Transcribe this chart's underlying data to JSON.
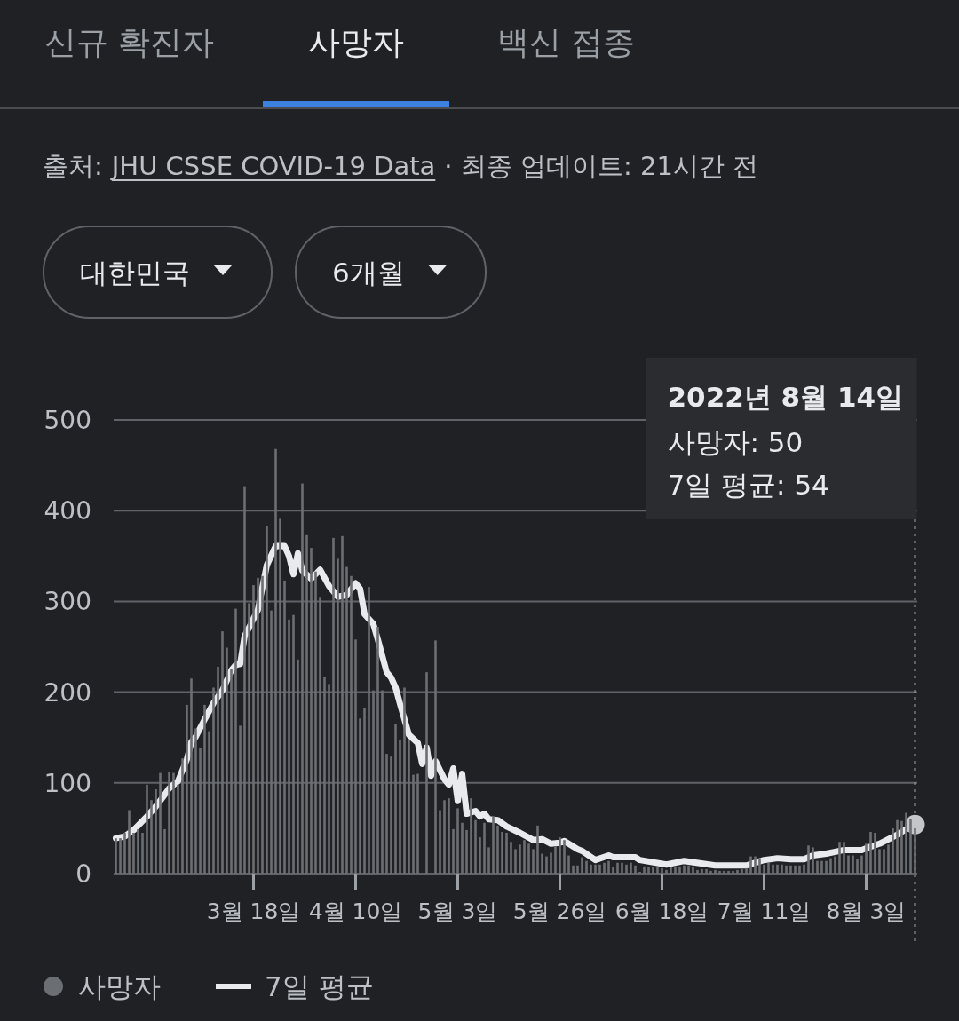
{
  "chart_data": {
    "type": "bar",
    "title": "사망자",
    "annotations": [
      "신규 확진자",
      "백신 접종",
      "출처:",
      "JHU CSSE COVID-19 Data",
      "· 최종 업데이트: 21시간 전",
      "대한민국",
      "6개월",
      "2022년 8월 14일",
      "사망자: 50",
      "7일 평균: 54"
    ],
    "x": [
      "2022-02-15",
      "2022-02-16",
      "2022-02-17",
      "2022-02-18",
      "2022-02-19",
      "2022-02-20",
      "2022-02-21",
      "2022-02-22",
      "2022-02-23",
      "2022-02-24",
      "2022-02-25",
      "2022-02-26",
      "2022-02-27",
      "2022-02-28",
      "2022-03-01",
      "2022-03-02",
      "2022-03-03",
      "2022-03-04",
      "2022-03-05",
      "2022-03-06",
      "2022-03-07",
      "2022-03-08",
      "2022-03-09",
      "2022-03-10",
      "2022-03-11",
      "2022-03-12",
      "2022-03-13",
      "2022-03-14",
      "2022-03-15",
      "2022-03-16",
      "2022-03-17",
      "2022-03-18",
      "2022-03-19",
      "2022-03-20",
      "2022-03-21",
      "2022-03-22",
      "2022-03-23",
      "2022-03-24",
      "2022-03-25",
      "2022-03-26",
      "2022-03-27",
      "2022-03-28",
      "2022-03-29",
      "2022-03-30",
      "2022-03-31",
      "2022-04-01",
      "2022-04-02",
      "2022-04-03",
      "2022-04-04",
      "2022-04-05",
      "2022-04-06",
      "2022-04-07",
      "2022-04-08",
      "2022-04-09",
      "2022-04-10",
      "2022-04-11",
      "2022-04-12",
      "2022-04-13",
      "2022-04-14",
      "2022-04-15",
      "2022-04-16",
      "2022-04-17",
      "2022-04-18",
      "2022-04-19",
      "2022-04-20",
      "2022-04-21",
      "2022-04-22",
      "2022-04-23",
      "2022-04-24",
      "2022-04-25",
      "2022-04-26",
      "2022-04-27",
      "2022-04-28",
      "2022-04-29",
      "2022-04-30",
      "2022-05-01",
      "2022-05-02",
      "2022-05-03",
      "2022-05-04",
      "2022-05-05",
      "2022-05-06",
      "2022-05-07",
      "2022-05-08",
      "2022-05-09",
      "2022-05-10",
      "2022-05-11",
      "2022-05-12",
      "2022-05-13",
      "2022-05-14",
      "2022-05-15",
      "2022-05-16",
      "2022-05-17",
      "2022-05-18",
      "2022-05-19",
      "2022-05-20",
      "2022-05-21",
      "2022-05-22",
      "2022-05-23",
      "2022-05-24",
      "2022-05-25",
      "2022-05-26",
      "2022-05-27",
      "2022-05-28",
      "2022-05-29",
      "2022-05-30",
      "2022-05-31",
      "2022-06-01",
      "2022-06-02",
      "2022-06-03",
      "2022-06-04",
      "2022-06-05",
      "2022-06-06",
      "2022-06-07",
      "2022-06-08",
      "2022-06-09",
      "2022-06-10",
      "2022-06-11",
      "2022-06-12",
      "2022-06-13",
      "2022-06-14",
      "2022-06-15",
      "2022-06-16",
      "2022-06-17",
      "2022-06-18",
      "2022-06-19",
      "2022-06-20",
      "2022-06-21",
      "2022-06-22",
      "2022-06-23",
      "2022-06-24",
      "2022-06-25",
      "2022-06-26",
      "2022-06-27",
      "2022-06-28",
      "2022-06-29",
      "2022-06-30",
      "2022-07-01",
      "2022-07-02",
      "2022-07-03",
      "2022-07-04",
      "2022-07-05",
      "2022-07-06",
      "2022-07-07",
      "2022-07-08",
      "2022-07-09",
      "2022-07-10",
      "2022-07-11",
      "2022-07-12",
      "2022-07-13",
      "2022-07-14",
      "2022-07-15",
      "2022-07-16",
      "2022-07-17",
      "2022-07-18",
      "2022-07-19",
      "2022-07-20",
      "2022-07-21",
      "2022-07-22",
      "2022-07-23",
      "2022-07-24",
      "2022-07-25",
      "2022-07-26",
      "2022-07-27",
      "2022-07-28",
      "2022-07-29",
      "2022-07-30",
      "2022-07-31",
      "2022-08-01",
      "2022-08-02",
      "2022-08-03",
      "2022-08-04",
      "2022-08-05",
      "2022-08-06",
      "2022-08-07",
      "2022-08-08",
      "2022-08-09",
      "2022-08-10",
      "2022-08-11",
      "2022-08-12",
      "2022-08-13",
      "2022-08-14"
    ],
    "series": [
      {
        "name": "사망자",
        "color": "#6b6e72",
        "values": [
          39,
          39,
          45,
          70,
          45,
          49,
          45,
          98,
          81,
          93,
          111,
          49,
          112,
          111,
          98,
          127,
          186,
          215,
          160,
          139,
          186,
          157,
          205,
          228,
          267,
          249,
          225,
          292,
          163,
          427,
          298,
          318,
          326,
          328,
          383,
          290,
          468,
          391,
          323,
          280,
          285,
          236,
          430,
          373,
          359,
          333,
          305,
          217,
          209,
          370,
          347,
          372,
          338,
          328,
          258,
          171,
          183,
          316,
          202,
          272,
          202,
          132,
          129,
          165,
          147,
          205,
          147,
          109,
          110,
          0,
          222,
          0,
          257,
          70,
          81,
          83,
          49,
          72,
          56,
          48,
          83,
          59,
          40,
          56,
          29,
          63,
          53,
          46,
          45,
          35,
          27,
          32,
          37,
          33,
          27,
          53,
          22,
          19,
          23,
          30,
          40,
          37,
          20,
          9,
          9,
          18,
          14,
          10,
          10,
          10,
          12,
          14,
          7,
          12,
          12,
          10,
          12,
          9,
          2,
          8,
          7,
          7,
          7,
          6,
          4,
          7,
          8,
          8,
          9,
          9,
          7,
          4,
          5,
          5,
          3,
          4,
          3,
          3,
          3,
          3,
          4,
          5,
          6,
          19,
          19,
          17,
          10,
          12,
          10,
          10,
          10,
          9,
          9,
          9,
          9,
          10,
          31,
          29,
          14,
          14,
          14,
          17,
          19,
          35,
          35,
          20,
          20,
          16,
          20,
          33,
          46,
          45,
          27,
          27,
          32,
          50,
          59,
          58,
          67,
          60,
          50
        ]
      },
      {
        "name": "7일 평균",
        "type": "line",
        "color": "#e8eaed",
        "x": [
          "2022-02-15",
          "2022-02-17",
          "2022-02-19",
          "2022-02-22",
          "2022-02-24",
          "2022-02-26",
          "2022-02-27",
          "2022-03-01",
          "2022-03-03",
          "2022-03-04",
          "2022-03-05",
          "2022-03-07",
          "2022-03-09",
          "2022-03-11",
          "2022-03-13",
          "2022-03-14",
          "2022-03-15",
          "2022-03-16",
          "2022-03-17",
          "2022-03-19",
          "2022-03-21",
          "2022-03-23",
          "2022-03-25",
          "2022-03-26",
          "2022-03-27",
          "2022-03-28",
          "2022-03-29",
          "2022-03-31",
          "2022-04-02",
          "2022-04-04",
          "2022-04-06",
          "2022-04-08",
          "2022-04-10",
          "2022-04-11",
          "2022-04-12",
          "2022-04-14",
          "2022-04-15",
          "2022-04-17",
          "2022-04-18",
          "2022-04-19",
          "2022-04-20",
          "2022-04-22",
          "2022-04-24",
          "2022-04-25",
          "2022-04-26",
          "2022-04-27",
          "2022-04-28",
          "2022-04-30",
          "2022-05-01",
          "2022-05-02",
          "2022-05-03",
          "2022-05-04",
          "2022-05-05",
          "2022-05-07",
          "2022-05-08",
          "2022-05-09",
          "2022-05-10",
          "2022-05-12",
          "2022-05-14",
          "2022-05-17",
          "2022-05-20",
          "2022-05-22",
          "2022-05-24",
          "2022-05-26",
          "2022-05-27",
          "2022-05-30",
          "2022-05-31",
          "2022-06-03",
          "2022-06-06",
          "2022-06-07",
          "2022-06-12",
          "2022-06-13",
          "2022-06-19",
          "2022-06-23",
          "2022-06-30",
          "2022-07-07",
          "2022-07-11",
          "2022-07-14",
          "2022-07-17",
          "2022-07-20",
          "2022-07-22",
          "2022-07-25",
          "2022-07-29",
          "2022-08-02",
          "2022-08-03",
          "2022-08-06",
          "2022-08-10",
          "2022-08-13",
          "2022-08-14"
        ],
        "values": [
          39,
          41,
          48,
          63,
          74,
          87,
          94,
          102,
          126,
          145,
          151,
          170,
          188,
          202,
          224,
          230,
          231,
          262,
          271,
          291,
          340,
          361,
          361,
          350,
          330,
          353,
          334,
          325,
          335,
          317,
          305,
          307,
          320,
          314,
          286,
          275,
          258,
          222,
          216,
          205,
          187,
          153,
          144,
          121,
          139,
          108,
          124,
          104,
          98,
          116,
          80,
          110,
          66,
          69,
          63,
          66,
          60,
          59,
          52,
          45,
          37,
          38,
          33,
          34,
          36,
          27,
          25,
          15,
          20,
          18,
          18,
          15,
          10,
          14,
          9,
          9,
          15,
          17,
          16,
          16,
          20,
          22,
          26,
          26,
          28,
          33,
          43,
          52,
          54
        ]
      }
    ],
    "xlim": [
      "2022-02-14T12:00",
      "2022-08-14T12:00"
    ],
    "xticks": [
      {
        "value": "2022-03-18",
        "label": "3월 18일"
      },
      {
        "value": "2022-04-10",
        "label": "4월 10일"
      },
      {
        "value": "2022-05-03",
        "label": "5월 3일"
      },
      {
        "value": "2022-05-26",
        "label": "5월 26일"
      },
      {
        "value": "2022-06-18",
        "label": "6월 18일"
      },
      {
        "value": "2022-07-11",
        "label": "7월 11일"
      },
      {
        "value": "2022-08-03",
        "label": "8월 3일"
      }
    ],
    "ylim": [
      0,
      500
    ],
    "yticks": [
      0,
      100,
      200,
      300,
      400,
      500
    ],
    "grid": "y",
    "legend": "bottom",
    "ref_lines": [
      {
        "axis": "x",
        "value": "2022-08-14",
        "color": "#9aa0a6",
        "line_style": "dotted"
      }
    ]
  }
}
